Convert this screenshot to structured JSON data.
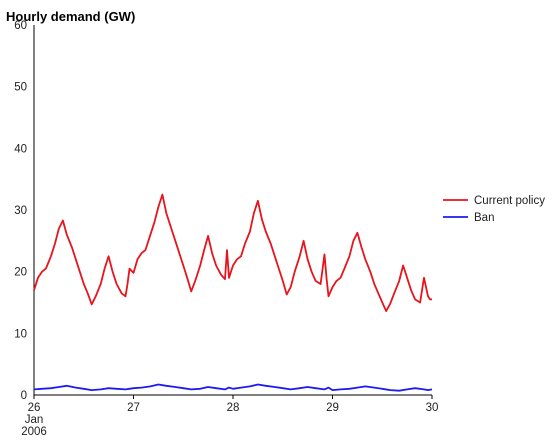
{
  "chart_data": {
    "type": "line",
    "title": "Hourly demand (GW)",
    "xlabel": "",
    "ylabel": "",
    "ylim": [
      0,
      60
    ],
    "yticks": [
      0,
      10,
      20,
      30,
      40,
      50,
      60
    ],
    "xlim": [
      26,
      30
    ],
    "xticks": [
      {
        "value": 26,
        "lines": [
          "26",
          "Jan",
          "2006"
        ]
      },
      {
        "value": 27,
        "lines": [
          "27"
        ]
      },
      {
        "value": 28,
        "lines": [
          "28"
        ]
      },
      {
        "value": 29,
        "lines": [
          "29"
        ]
      },
      {
        "value": 30,
        "lines": [
          "30"
        ]
      }
    ],
    "x_unit": "day of January 2006",
    "grid": false,
    "legend_position": "right",
    "series": [
      {
        "name": "Current policy",
        "color": "#e8141c",
        "x": [
          26.0,
          26.04,
          26.08,
          26.12,
          26.17,
          26.21,
          26.25,
          26.29,
          26.33,
          26.38,
          26.42,
          26.46,
          26.5,
          26.54,
          26.58,
          26.62,
          26.67,
          26.71,
          26.75,
          26.79,
          26.83,
          26.88,
          26.92,
          26.94,
          26.96,
          27.0,
          27.04,
          27.08,
          27.12,
          27.17,
          27.21,
          27.25,
          27.29,
          27.33,
          27.38,
          27.42,
          27.46,
          27.5,
          27.54,
          27.58,
          27.62,
          27.67,
          27.71,
          27.75,
          27.79,
          27.83,
          27.88,
          27.92,
          27.94,
          27.96,
          28.0,
          28.04,
          28.08,
          28.12,
          28.17,
          28.21,
          28.25,
          28.29,
          28.33,
          28.38,
          28.42,
          28.46,
          28.5,
          28.54,
          28.58,
          28.62,
          28.67,
          28.71,
          28.75,
          28.79,
          28.83,
          28.88,
          28.92,
          28.94,
          28.96,
          29.0,
          29.04,
          29.08,
          29.12,
          29.17,
          29.21,
          29.25,
          29.29,
          29.33,
          29.38,
          29.42,
          29.46,
          29.5,
          29.54,
          29.58,
          29.62,
          29.67,
          29.71,
          29.75,
          29.79,
          29.83,
          29.88,
          29.92,
          29.96,
          29.98,
          30.0
        ],
        "values": [
          17.0,
          19.0,
          20.0,
          20.5,
          22.5,
          24.5,
          27.0,
          28.3,
          26.0,
          24.0,
          22.0,
          20.0,
          18.0,
          16.5,
          14.7,
          16.0,
          18.0,
          20.5,
          22.5,
          20.0,
          18.0,
          16.5,
          16.0,
          18.0,
          20.5,
          19.8,
          22.0,
          23.0,
          23.5,
          26.0,
          28.0,
          30.5,
          32.5,
          29.5,
          27.0,
          25.0,
          23.0,
          21.0,
          19.0,
          16.8,
          18.5,
          21.0,
          23.5,
          25.8,
          23.0,
          21.0,
          19.5,
          18.8,
          23.5,
          19.0,
          21.0,
          22.0,
          22.5,
          24.5,
          26.5,
          29.5,
          31.5,
          28.5,
          26.5,
          24.5,
          22.5,
          20.5,
          18.5,
          16.3,
          17.5,
          20.0,
          22.5,
          25.0,
          22.0,
          20.0,
          18.5,
          18.0,
          22.8,
          19.0,
          16.0,
          17.5,
          18.5,
          19.0,
          20.5,
          22.5,
          25.0,
          26.3,
          24.0,
          22.0,
          20.0,
          18.0,
          16.5,
          15.0,
          13.6,
          14.8,
          16.5,
          18.5,
          21.0,
          19.0,
          17.0,
          15.5,
          15.0,
          19.0,
          16.0,
          15.5,
          15.5
        ]
      },
      {
        "name": "Ban",
        "color": "#1c1cf0",
        "x": [
          26.0,
          26.08,
          26.17,
          26.25,
          26.33,
          26.42,
          26.5,
          26.58,
          26.67,
          26.75,
          26.83,
          26.92,
          27.0,
          27.08,
          27.17,
          27.25,
          27.33,
          27.42,
          27.5,
          27.58,
          27.67,
          27.75,
          27.83,
          27.92,
          27.96,
          28.0,
          28.08,
          28.17,
          28.25,
          28.33,
          28.42,
          28.5,
          28.58,
          28.67,
          28.75,
          28.83,
          28.92,
          28.96,
          29.0,
          29.08,
          29.17,
          29.25,
          29.33,
          29.42,
          29.5,
          29.58,
          29.67,
          29.75,
          29.83,
          29.92,
          29.96,
          30.0
        ],
        "values": [
          0.9,
          1.0,
          1.1,
          1.3,
          1.5,
          1.2,
          1.0,
          0.8,
          0.9,
          1.1,
          1.0,
          0.9,
          1.1,
          1.2,
          1.4,
          1.7,
          1.5,
          1.3,
          1.1,
          0.9,
          1.0,
          1.3,
          1.1,
          0.9,
          1.2,
          1.0,
          1.2,
          1.4,
          1.7,
          1.5,
          1.3,
          1.1,
          0.9,
          1.1,
          1.3,
          1.1,
          0.9,
          1.2,
          0.8,
          0.9,
          1.0,
          1.2,
          1.4,
          1.2,
          1.0,
          0.8,
          0.7,
          0.9,
          1.1,
          0.9,
          0.8,
          0.9
        ]
      }
    ]
  }
}
